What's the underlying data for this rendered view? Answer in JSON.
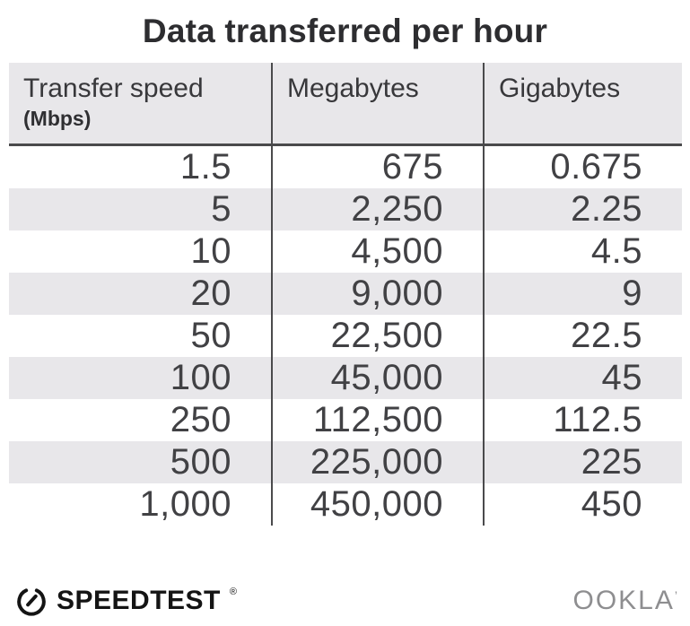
{
  "title": "Data transferred per hour",
  "table": {
    "columns": [
      {
        "label": "Transfer speed",
        "sublabel": "(Mbps)"
      },
      {
        "label": "Megabytes"
      },
      {
        "label": "Gigabytes"
      }
    ],
    "rows": [
      [
        "1.5",
        "675",
        "0.675"
      ],
      [
        "5",
        "2,250",
        "2.25"
      ],
      [
        "10",
        "4,500",
        "4.5"
      ],
      [
        "20",
        "9,000",
        "9"
      ],
      [
        "50",
        "22,500",
        "22.5"
      ],
      [
        "100",
        "45,000",
        "45"
      ],
      [
        "250",
        "112,500",
        "112.5"
      ],
      [
        "500",
        "225,000",
        "225"
      ],
      [
        "1,000",
        "450,000",
        "450"
      ]
    ]
  },
  "footer": {
    "brand": "SPEEDTEST",
    "brand_mark": "®",
    "company": "OOKLA",
    "company_mark": "’"
  },
  "colors": {
    "stripe": "#e8e7ea",
    "divider": "#4a4a4c",
    "title_text": "#2d2d30",
    "cell_text": "#414144",
    "brand_black": "#141414",
    "company_gray": "#8e8e90"
  },
  "chart_data": {
    "type": "table",
    "title": "Data transferred per hour",
    "columns": [
      "Transfer speed (Mbps)",
      "Megabytes",
      "Gigabytes"
    ],
    "transfer_speed_mbps": [
      1.5,
      5,
      10,
      20,
      50,
      100,
      250,
      500,
      1000
    ],
    "megabytes": [
      675,
      2250,
      4500,
      9000,
      22500,
      45000,
      112500,
      225000,
      450000
    ],
    "gigabytes": [
      0.675,
      2.25,
      4.5,
      9,
      22.5,
      45,
      112.5,
      225,
      450
    ]
  }
}
